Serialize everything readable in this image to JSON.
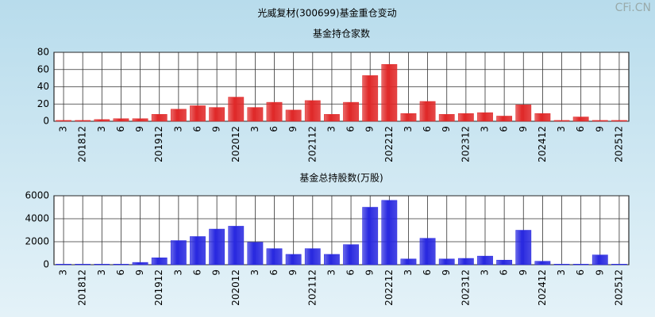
{
  "title": "光威复材(300699)基金重仓变动",
  "watermark": "CFi.CN",
  "chart_data": [
    {
      "type": "bar",
      "title": "基金持仓家数",
      "color": "#e02828",
      "categories": [
        "3",
        "201812",
        "3",
        "6",
        "9",
        "201912",
        "3",
        "6",
        "9",
        "202012",
        "3",
        "6",
        "9",
        "202112",
        "3",
        "6",
        "9",
        "202212",
        "3",
        "6",
        "9",
        "202312",
        "3",
        "6",
        "9",
        "202412",
        "3",
        "6",
        "9",
        "202512"
      ],
      "values": [
        1,
        1,
        2,
        3,
        3,
        8,
        14,
        18,
        16,
        28,
        16,
        22,
        13,
        24,
        8,
        22,
        53,
        66,
        9,
        23,
        8,
        9,
        10,
        6,
        19,
        9,
        1,
        5,
        1,
        1
      ],
      "ylim": [
        0,
        80
      ],
      "yticks": [
        0,
        20,
        40,
        60,
        80
      ],
      "grid": true
    },
    {
      "type": "bar",
      "title": "基金总持股数(万股)",
      "color": "#2828e0",
      "categories": [
        "3",
        "201812",
        "3",
        "6",
        "9",
        "201912",
        "3",
        "6",
        "9",
        "202012",
        "3",
        "6",
        "9",
        "202112",
        "3",
        "6",
        "9",
        "202212",
        "3",
        "6",
        "9",
        "202312",
        "3",
        "6",
        "9",
        "202412",
        "3",
        "6",
        "9",
        "202512"
      ],
      "values": [
        50,
        50,
        50,
        50,
        200,
        600,
        2100,
        2450,
        3100,
        3350,
        1950,
        1400,
        900,
        1400,
        900,
        1750,
        5000,
        5600,
        500,
        2300,
        500,
        550,
        750,
        400,
        3000,
        300,
        50,
        50,
        850,
        50
      ],
      "ylim": [
        0,
        6000
      ],
      "yticks": [
        0,
        2000,
        4000,
        6000
      ],
      "grid": true
    }
  ]
}
